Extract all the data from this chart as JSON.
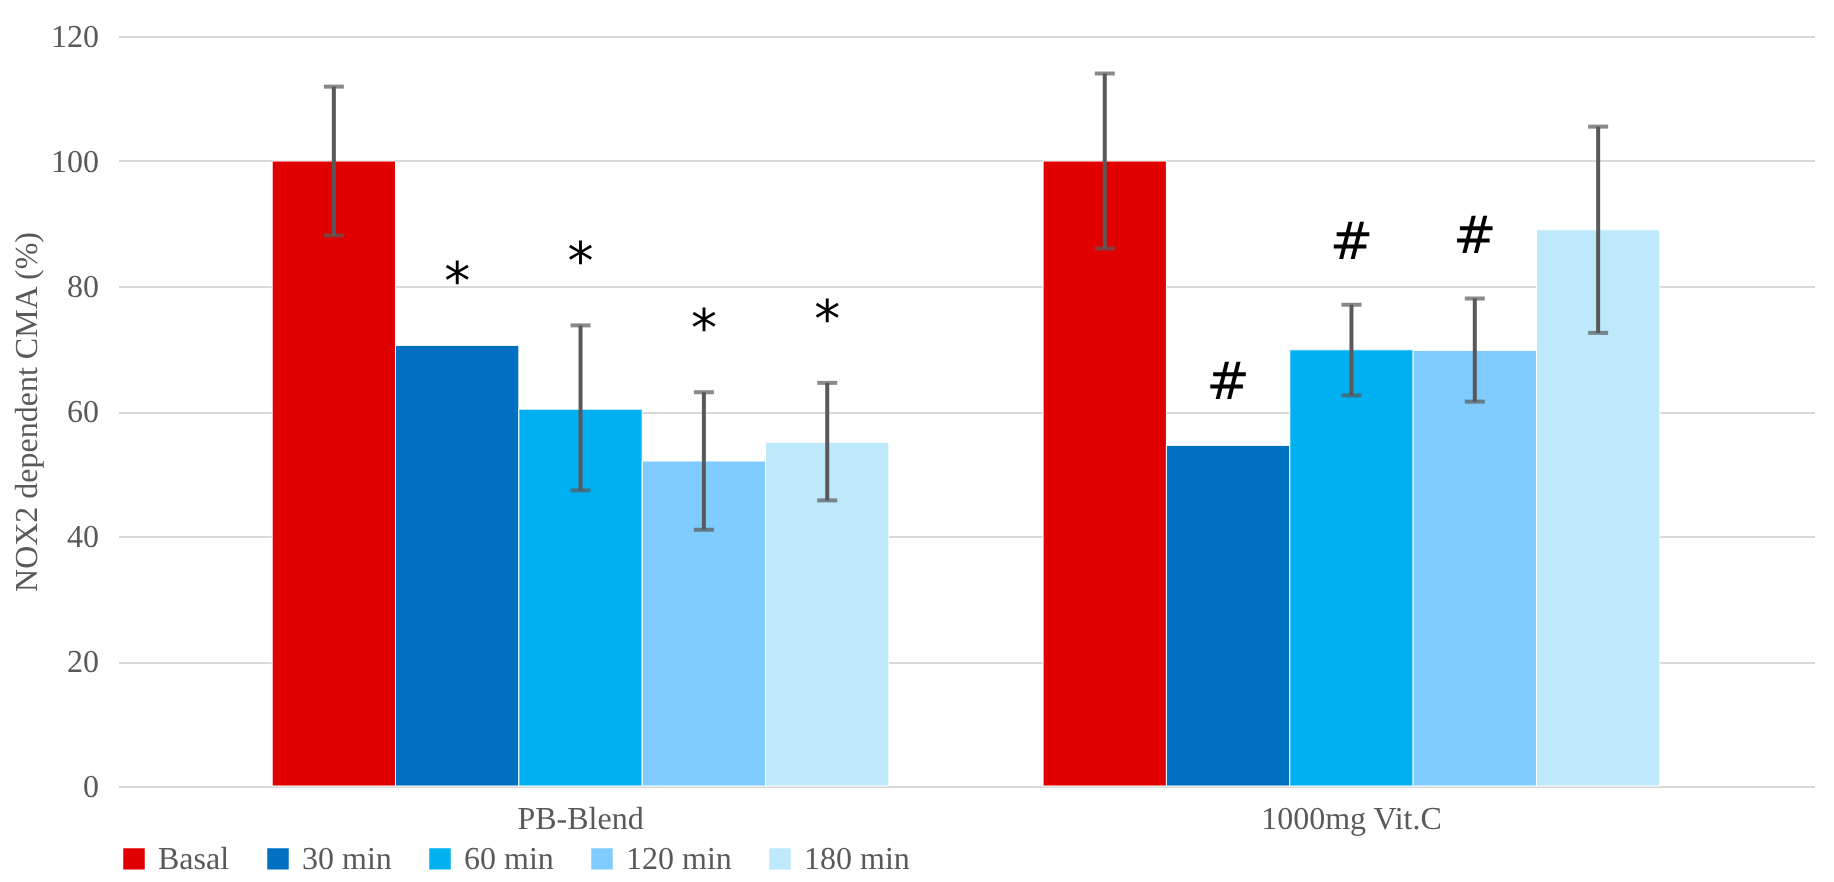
{
  "chart_data": {
    "type": "bar",
    "ylabel": "NOX2 dependent CMA (%)",
    "categories": [
      "PB-Blend",
      "1000mg Vit.C"
    ],
    "series": [
      {
        "name": "Basal",
        "color": "#e00000",
        "values": [
          100,
          100
        ],
        "errors": [
          [
            88.1,
            111.9
          ],
          [
            86,
            114
          ]
        ]
      },
      {
        "name": "30 min",
        "color": "#0070c0",
        "values": [
          70.5,
          54.5
        ],
        "errors": [
          null,
          null
        ]
      },
      {
        "name": "60 min",
        "color": "#00b0f0",
        "values": [
          60.3,
          69.8
        ],
        "errors": [
          [
            47.3,
            73.7
          ],
          [
            62.5,
            77
          ]
        ]
      },
      {
        "name": "120 min",
        "color": "#80cbff",
        "values": [
          52,
          69.7
        ],
        "errors": [
          [
            41,
            63
          ],
          [
            61.5,
            78
          ]
        ]
      },
      {
        "name": "180 min",
        "color": "#bde9fb",
        "values": [
          55,
          89
        ],
        "errors": [
          [
            45.7,
            64.5
          ],
          [
            72.5,
            105.5
          ]
        ]
      }
    ],
    "ylim": [
      0,
      120
    ],
    "yticks": [
      0,
      20,
      40,
      60,
      80,
      100,
      120
    ],
    "grid": "y",
    "legend": "bottom",
    "annotations": [
      "*",
      "*",
      "*",
      "*",
      "#",
      "#",
      "#"
    ]
  }
}
